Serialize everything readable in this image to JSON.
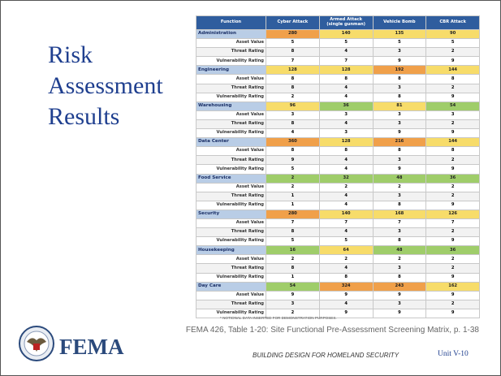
{
  "slide": {
    "title": "Risk Assessment Results",
    "table": {
      "columns": [
        "Function",
        "Cyber Attack",
        "Armed Attack (single gunman)",
        "Vehicle Bomb",
        "CBR Attack"
      ],
      "row_labels": [
        "Asset Value",
        "Threat Rating",
        "Vulnerability Rating"
      ],
      "groups": [
        {
          "function": "Administration",
          "values": [
            280,
            140,
            135,
            90
          ],
          "cell_colors": [
            "#f0a04a",
            "#f7dc6a",
            "#f7dc6a",
            "#f7dc6a"
          ],
          "rows": [
            [
              5,
              5,
              5,
              5
            ],
            [
              8,
              4,
              3,
              2
            ],
            [
              7,
              7,
              9,
              9
            ]
          ]
        },
        {
          "function": "Engineering",
          "values": [
            128,
            128,
            192,
            144
          ],
          "cell_colors": [
            "#f7dc6a",
            "#f7dc6a",
            "#f0a04a",
            "#f7dc6a"
          ],
          "rows": [
            [
              8,
              8,
              8,
              8
            ],
            [
              8,
              4,
              3,
              2
            ],
            [
              2,
              4,
              8,
              9
            ]
          ]
        },
        {
          "function": "Warehousing",
          "values": [
            96,
            36,
            81,
            54
          ],
          "cell_colors": [
            "#f7dc6a",
            "#9fcd6a",
            "#f7dc6a",
            "#9fcd6a"
          ],
          "rows": [
            [
              3,
              3,
              3,
              3
            ],
            [
              8,
              4,
              3,
              2
            ],
            [
              4,
              3,
              9,
              9
            ]
          ]
        },
        {
          "function": "Data Center",
          "values": [
            360,
            128,
            216,
            144
          ],
          "cell_colors": [
            "#f0a04a",
            "#f7dc6a",
            "#f0a04a",
            "#f7dc6a"
          ],
          "rows": [
            [
              8,
              8,
              8,
              8
            ],
            [
              9,
              4,
              3,
              2
            ],
            [
              5,
              4,
              9,
              9
            ]
          ]
        },
        {
          "function": "Food Service",
          "values": [
            2,
            32,
            48,
            36
          ],
          "cell_colors": [
            "#9fcd6a",
            "#9fcd6a",
            "#9fcd6a",
            "#9fcd6a"
          ],
          "rows": [
            [
              2,
              2,
              2,
              2
            ],
            [
              1,
              4,
              3,
              2
            ],
            [
              1,
              4,
              8,
              9
            ]
          ]
        },
        {
          "function": "Security",
          "values": [
            280,
            140,
            168,
            126
          ],
          "cell_colors": [
            "#f0a04a",
            "#f7dc6a",
            "#f7dc6a",
            "#f7dc6a"
          ],
          "rows": [
            [
              7,
              7,
              7,
              7
            ],
            [
              8,
              4,
              3,
              2
            ],
            [
              5,
              5,
              8,
              9
            ]
          ]
        },
        {
          "function": "Housekeeping",
          "values": [
            16,
            64,
            48,
            36
          ],
          "cell_colors": [
            "#9fcd6a",
            "#f7dc6a",
            "#9fcd6a",
            "#9fcd6a"
          ],
          "rows": [
            [
              2,
              2,
              2,
              2
            ],
            [
              8,
              4,
              3,
              2
            ],
            [
              1,
              8,
              8,
              9
            ]
          ]
        },
        {
          "function": "Day Care",
          "values": [
            54,
            324,
            243,
            162
          ],
          "cell_colors": [
            "#9fcd6a",
            "#f0a04a",
            "#f0a04a",
            "#f7dc6a"
          ],
          "rows": [
            [
              9,
              9,
              9,
              9
            ],
            [
              3,
              4,
              3,
              2
            ],
            [
              2,
              9,
              9,
              9
            ]
          ]
        }
      ],
      "footnote": "* NOTIONAL DATA INSERTED FOR DEMONSTRATION PURPOSES."
    },
    "logo_text": "FEMA",
    "caption": "FEMA 426, Table 1-20: Site Functional Pre-Assessment Screening Matrix, p. 1-38",
    "footer": "BUILDING DESIGN FOR HOMELAND SECURITY",
    "unit": "Unit V-10"
  }
}
